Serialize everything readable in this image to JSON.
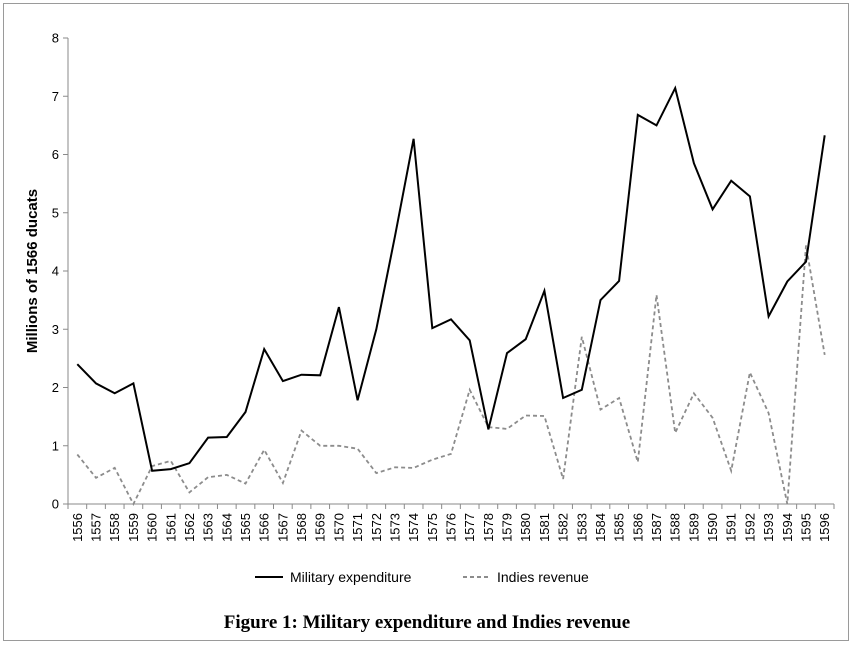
{
  "chart_data": {
    "type": "line",
    "title": "",
    "xlabel": "",
    "ylabel": "Millions of 1566 ducats",
    "ylim": [
      0,
      8
    ],
    "yticks": [
      "0",
      "1",
      "2",
      "3",
      "4",
      "5",
      "6",
      "7",
      "8"
    ],
    "grid": false,
    "legend_position": "bottom",
    "categories": [
      "1556",
      "1557",
      "1558",
      "1559",
      "1560",
      "1561",
      "1562",
      "1563",
      "1564",
      "1565",
      "1566",
      "1567",
      "1568",
      "1569",
      "1570",
      "1571",
      "1572",
      "1573",
      "1574",
      "1575",
      "1576",
      "1577",
      "1578",
      "1579",
      "1580",
      "1581",
      "1582",
      "1583",
      "1584",
      "1585",
      "1586",
      "1587",
      "1588",
      "1589",
      "1590",
      "1591",
      "1592",
      "1593",
      "1594",
      "1595",
      "1596"
    ],
    "series": [
      {
        "name": "Military expenditure",
        "color": "#000000",
        "style": "solid",
        "values": [
          2.4,
          2.07,
          1.9,
          2.07,
          0.57,
          0.6,
          0.7,
          1.14,
          1.15,
          1.58,
          2.66,
          2.11,
          2.22,
          2.21,
          3.38,
          1.78,
          3.0,
          4.6,
          6.27,
          3.02,
          3.17,
          2.81,
          1.28,
          2.59,
          2.83,
          3.66,
          1.82,
          1.96,
          3.5,
          3.83,
          6.68,
          6.5,
          7.14,
          5.85,
          5.06,
          5.55,
          5.28,
          3.22,
          3.82,
          4.16,
          6.33
        ]
      },
      {
        "name": "Indies revenue",
        "color": "#8c8c8c",
        "style": "dashed",
        "values": [
          0.85,
          0.45,
          0.62,
          0.0,
          0.65,
          0.74,
          0.2,
          0.46,
          0.5,
          0.35,
          0.93,
          0.36,
          1.26,
          1.0,
          1.0,
          0.95,
          0.53,
          0.63,
          0.62,
          0.76,
          0.86,
          1.96,
          1.32,
          1.29,
          1.52,
          1.51,
          0.43,
          2.87,
          1.62,
          1.82,
          0.72,
          3.59,
          1.22,
          1.9,
          1.48,
          0.57,
          2.26,
          1.56,
          0.0,
          4.44,
          2.56
        ]
      }
    ]
  },
  "caption": "Figure 1: Military expenditure and Indies revenue"
}
